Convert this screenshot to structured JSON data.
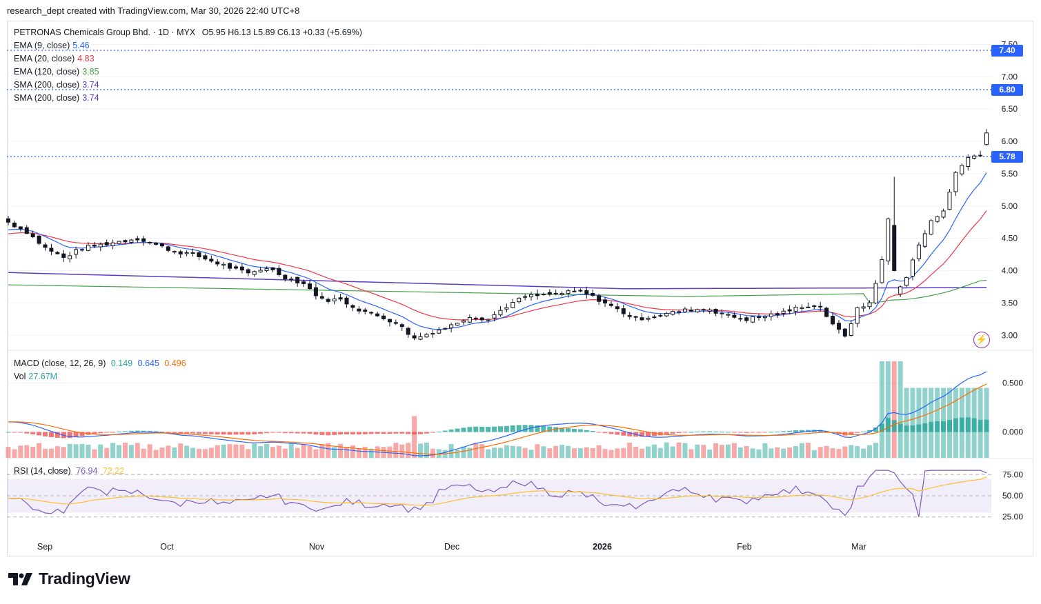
{
  "header": {
    "attribution": "research_dept created with TradingView.com, Mar 30, 2026 22:40 UTC+8"
  },
  "symbol_line": {
    "name": "PETRONAS Chemicals Group Bhd. · 1D · MYX",
    "ohlc": "O5.95  H6.13  L5.89  C6.13  +0.33 (+5.69%)"
  },
  "indicators": [
    {
      "label": "EMA (9, close)",
      "value": "5.46",
      "color": "#2962ff"
    },
    {
      "label": "EMA (20, close)",
      "value": "4.83",
      "color": "#f23645"
    },
    {
      "label": "EMA (120, close)",
      "value": "3.85",
      "color": "#43a047"
    },
    {
      "label": "SMA (200, close)",
      "value": "3.74",
      "color": "#5b3cc4"
    },
    {
      "label": "SMA (200, close)",
      "value": "3.74",
      "color": "#5b3cc4"
    }
  ],
  "macd_legend": {
    "label": "MACD (close, 12, 26, 9)",
    "hist": "0.149",
    "macd": "0.645",
    "signal": "0.496",
    "hist_color": "#26a69a",
    "macd_color": "#2962ff",
    "signal_color": "#ff6d00"
  },
  "vol_legend": {
    "label": "Vol",
    "value": "27.67M",
    "color": "#26a69a"
  },
  "rsi_legend": {
    "label": "RSI (14, close)",
    "value": "76.94",
    "ma": "72.22",
    "color": "#7e57c2",
    "ma_color": "#fbc02d"
  },
  "price_tags": [
    {
      "text": "7.40",
      "color": "#2962ff"
    },
    {
      "text": "6.80",
      "color": "#2962ff"
    },
    {
      "text": "5.78",
      "color": "#2962ff"
    }
  ],
  "brand": {
    "name": "TradingView"
  },
  "colors": {
    "up": "#131722",
    "down": "#131722",
    "vol_up": "#26a69a",
    "vol_down": "#ef5350"
  },
  "chart_data": [
    {
      "type": "candlestick",
      "title": "PETRONAS Chemicals Group Bhd. · 1D · MYX",
      "ylim": [
        2.8,
        7.6
      ],
      "y_ticks": [
        "7.50",
        "7.00",
        "6.50",
        "6.00",
        "5.50",
        "5.00",
        "4.50",
        "4.00",
        "3.50",
        "3.00"
      ],
      "x_ticks": [
        "Sep",
        "Oct",
        "Nov",
        "Dec",
        "2026",
        "Feb",
        "Mar"
      ],
      "levels": [
        7.4,
        6.8,
        5.78
      ],
      "close_start": 4.75,
      "close_path": [
        [
          0,
          4.75
        ],
        [
          3,
          4.6
        ],
        [
          6,
          4.35
        ],
        [
          9,
          4.2
        ],
        [
          12,
          4.35
        ],
        [
          15,
          4.4
        ],
        [
          18,
          4.45
        ],
        [
          21,
          4.5
        ],
        [
          24,
          4.4
        ],
        [
          27,
          4.3
        ],
        [
          30,
          4.25
        ],
        [
          33,
          4.15
        ],
        [
          36,
          4.05
        ],
        [
          39,
          3.95
        ],
        [
          42,
          4.05
        ],
        [
          45,
          3.9
        ],
        [
          48,
          3.8
        ],
        [
          51,
          3.55
        ],
        [
          54,
          3.55
        ],
        [
          57,
          3.4
        ],
        [
          60,
          3.3
        ],
        [
          63,
          3.2
        ],
        [
          66,
          2.95
        ],
        [
          69,
          3.05
        ],
        [
          72,
          3.15
        ],
        [
          75,
          3.3
        ],
        [
          78,
          3.25
        ],
        [
          81,
          3.45
        ],
        [
          84,
          3.6
        ],
        [
          87,
          3.62
        ],
        [
          90,
          3.65
        ],
        [
          93,
          3.68
        ],
        [
          96,
          3.55
        ],
        [
          99,
          3.4
        ],
        [
          102,
          3.25
        ],
        [
          105,
          3.3
        ],
        [
          108,
          3.35
        ],
        [
          111,
          3.4
        ],
        [
          114,
          3.4
        ],
        [
          117,
          3.3
        ],
        [
          120,
          3.25
        ],
        [
          123,
          3.3
        ],
        [
          126,
          3.35
        ],
        [
          129,
          3.45
        ],
        [
          132,
          3.45
        ],
        [
          134,
          3.15
        ],
        [
          136,
          3.0
        ],
        [
          138,
          3.4
        ],
        [
          140,
          3.5
        ],
        [
          142,
          4.15
        ],
        [
          143,
          4.8
        ],
        [
          144,
          3.65
        ],
        [
          146,
          3.9
        ],
        [
          148,
          4.4
        ],
        [
          150,
          4.75
        ],
        [
          152,
          4.95
        ],
        [
          154,
          5.5
        ],
        [
          156,
          5.75
        ],
        [
          158,
          5.8
        ],
        [
          159,
          6.13
        ]
      ],
      "ema9_end": 5.46,
      "ema20_end": 4.83,
      "ema120_end": 3.85,
      "sma200_end": 3.74
    },
    {
      "type": "bar",
      "title": "MACD (close, 12, 26, 9)",
      "ylim": [
        -0.25,
        0.75
      ],
      "y_ticks": [
        "0.500",
        "0.000"
      ],
      "series": [
        {
          "name": "MACD",
          "last": 0.645
        },
        {
          "name": "Signal",
          "last": 0.496
        },
        {
          "name": "Histogram",
          "last": 0.149
        }
      ],
      "volume_last": "27.67M"
    },
    {
      "type": "line",
      "title": "RSI (14, close)",
      "ylim": [
        15,
        85
      ],
      "y_ticks": [
        "75.00",
        "50.00",
        "25.00"
      ],
      "bands": [
        30,
        70
      ],
      "series": [
        {
          "name": "RSI",
          "last": 76.94
        },
        {
          "name": "MA",
          "last": 72.22
        }
      ]
    }
  ]
}
